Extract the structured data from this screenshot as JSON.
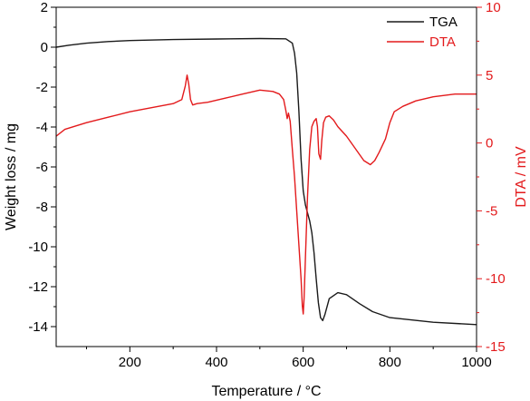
{
  "colors": {
    "tga": "#1a1a1a",
    "dta": "#e31a1c",
    "axis": "#000000"
  },
  "chart_data": {
    "type": "line",
    "title": "",
    "xlabel": "Temperature / °C",
    "ylabel": "Weight loss / mg",
    "y2label": "DTA / mV",
    "xlim": [
      30,
      1000
    ],
    "ylim": [
      -15,
      2
    ],
    "y2lim": [
      -15,
      10
    ],
    "xticks": [
      "200",
      "400",
      "600",
      "800",
      "1000"
    ],
    "yticks": [
      "2",
      "0",
      "-2",
      "-4",
      "-6",
      "-8",
      "-10",
      "-12",
      "-14"
    ],
    "y2ticks": [
      "10",
      "5",
      "0",
      "-5",
      "-10",
      "-15"
    ],
    "grid": false,
    "legend": "top-right",
    "series": [
      {
        "name": "TGA",
        "axis": "left",
        "color": "#1a1a1a",
        "x": [
          30,
          60,
          100,
          150,
          200,
          300,
          400,
          500,
          560,
          575,
          580,
          585,
          590,
          595,
          600,
          605,
          610,
          615,
          620,
          625,
          630,
          635,
          640,
          645,
          650,
          660,
          680,
          700,
          730,
          760,
          800,
          900,
          1000
        ],
        "y": [
          0.0,
          0.1,
          0.2,
          0.28,
          0.33,
          0.38,
          0.41,
          0.43,
          0.42,
          0.2,
          -0.3,
          -1.3,
          -3.2,
          -5.6,
          -7.2,
          -7.9,
          -8.3,
          -8.7,
          -9.3,
          -10.3,
          -11.6,
          -12.8,
          -13.55,
          -13.7,
          -13.4,
          -12.6,
          -12.3,
          -12.4,
          -12.85,
          -13.25,
          -13.55,
          -13.78,
          -13.9
        ]
      },
      {
        "name": "DTA",
        "axis": "right",
        "color": "#e31a1c",
        "x": [
          30,
          50,
          100,
          150,
          200,
          250,
          300,
          320,
          328,
          332,
          336,
          340,
          345,
          355,
          380,
          420,
          460,
          500,
          530,
          545,
          555,
          560,
          563,
          566,
          570,
          575,
          580,
          585,
          590,
          595,
          598,
          600,
          602,
          605,
          610,
          615,
          620,
          625,
          630,
          633,
          636,
          640,
          643,
          647,
          652,
          660,
          670,
          680,
          700,
          720,
          740,
          755,
          765,
          775,
          790,
          800,
          810,
          830,
          860,
          900,
          950,
          1000
        ],
        "y": [
          0.5,
          1.0,
          1.5,
          1.9,
          2.3,
          2.6,
          2.9,
          3.2,
          4.2,
          5.0,
          4.3,
          3.2,
          2.8,
          2.9,
          3.0,
          3.3,
          3.6,
          3.9,
          3.8,
          3.6,
          3.2,
          2.4,
          1.8,
          2.2,
          1.6,
          -0.5,
          -2.5,
          -5.0,
          -7.5,
          -10.0,
          -12.0,
          -12.6,
          -11.5,
          -8.5,
          -4.0,
          -0.5,
          1.2,
          1.6,
          1.8,
          1.2,
          -0.8,
          -1.2,
          0.2,
          1.5,
          1.9,
          2.0,
          1.7,
          1.2,
          0.5,
          -0.4,
          -1.3,
          -1.6,
          -1.3,
          -0.7,
          0.3,
          1.5,
          2.3,
          2.7,
          3.1,
          3.4,
          3.6,
          3.6
        ]
      }
    ]
  }
}
